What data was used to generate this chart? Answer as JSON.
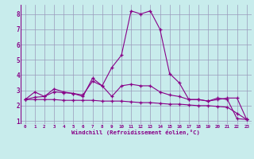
{
  "xlabel": "Windchill (Refroidissement éolien,°C)",
  "bg_color": "#c8ecec",
  "line_color": "#880088",
  "grid_color": "#9999bb",
  "xmin": -0.5,
  "xmax": 23.5,
  "ymin": 0.8,
  "ymax": 8.6,
  "yticks": [
    1,
    2,
    3,
    4,
    5,
    6,
    7,
    8
  ],
  "xticks": [
    0,
    1,
    2,
    3,
    4,
    5,
    6,
    7,
    8,
    9,
    10,
    11,
    12,
    13,
    14,
    15,
    16,
    17,
    18,
    19,
    20,
    21,
    22,
    23
  ],
  "lines": [
    {
      "x": [
        0,
        1,
        2,
        3,
        4,
        5,
        6,
        7,
        8,
        9,
        10,
        11,
        12,
        13,
        14,
        15,
        16,
        17,
        18,
        19,
        20,
        21,
        22,
        23
      ],
      "y": [
        2.4,
        2.9,
        2.6,
        3.1,
        2.9,
        2.8,
        2.6,
        3.8,
        3.3,
        4.5,
        5.3,
        8.2,
        8.0,
        8.2,
        7.0,
        4.1,
        3.5,
        2.4,
        2.4,
        2.3,
        2.5,
        2.4,
        1.15,
        1.1
      ]
    },
    {
      "x": [
        0,
        1,
        2,
        3,
        4,
        5,
        6,
        7,
        8,
        9,
        10,
        11,
        12,
        13,
        14,
        15,
        16,
        17,
        18,
        19,
        20,
        21,
        22,
        23
      ],
      "y": [
        2.4,
        2.55,
        2.6,
        2.9,
        2.85,
        2.8,
        2.7,
        3.6,
        3.3,
        2.6,
        3.3,
        3.4,
        3.3,
        3.3,
        2.9,
        2.7,
        2.6,
        2.4,
        2.4,
        2.3,
        2.4,
        2.5,
        2.5,
        1.1
      ]
    },
    {
      "x": [
        0,
        1,
        2,
        3,
        4,
        5,
        6,
        7,
        8,
        9,
        10,
        11,
        12,
        13,
        14,
        15,
        16,
        17,
        18,
        19,
        20,
        21,
        22,
        23
      ],
      "y": [
        2.4,
        2.4,
        2.4,
        2.4,
        2.35,
        2.35,
        2.35,
        2.35,
        2.3,
        2.3,
        2.3,
        2.25,
        2.2,
        2.2,
        2.15,
        2.1,
        2.1,
        2.05,
        2.0,
        2.0,
        1.95,
        1.9,
        1.5,
        1.1
      ]
    }
  ]
}
